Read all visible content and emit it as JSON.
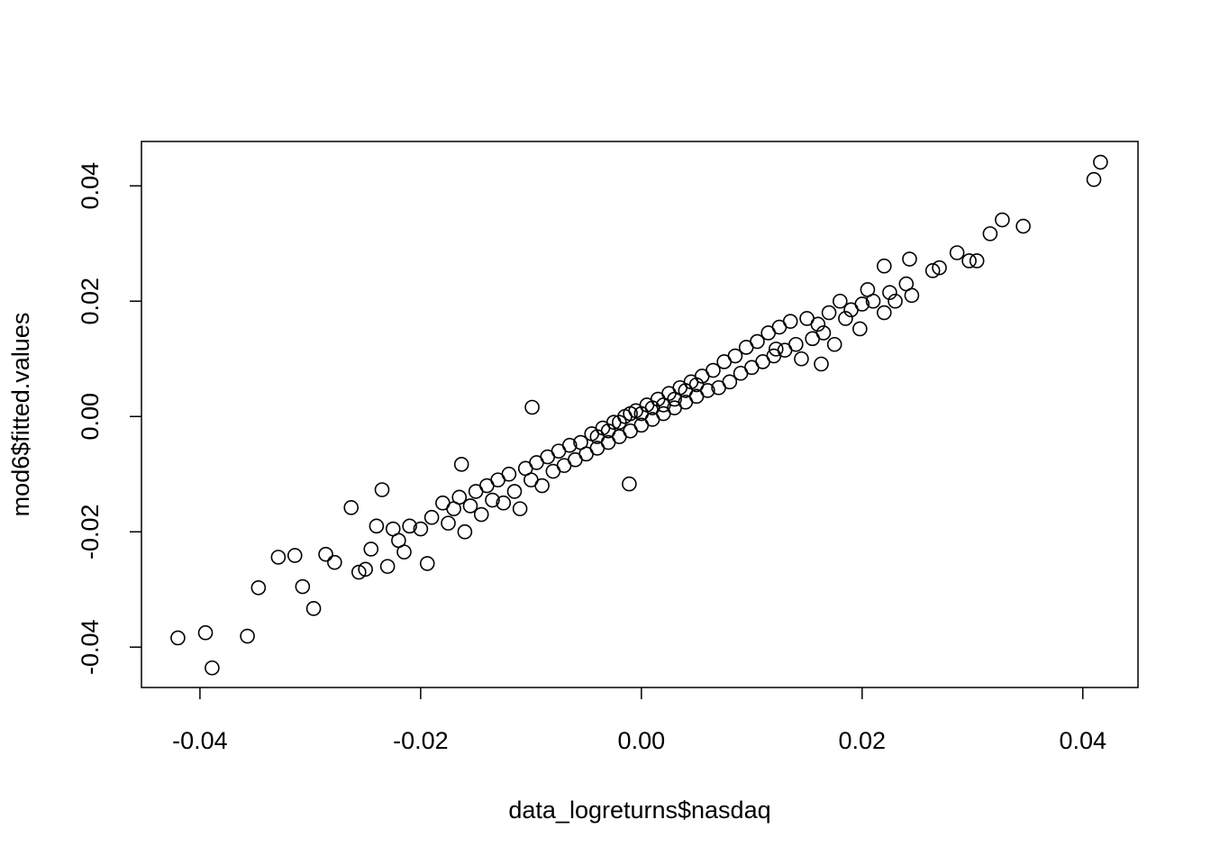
{
  "chart_data": {
    "type": "scatter",
    "xlabel": "data_logreturns$nasdaq",
    "ylabel": "mod6$fitted.values",
    "xlim": [
      -0.0453,
      0.045
    ],
    "ylim": [
      -0.047,
      0.0477
    ],
    "xticks": [
      -0.04,
      -0.02,
      {
        "value": 0,
        "label": "0.00"
      },
      0.02,
      0.04
    ],
    "yticks": [
      -0.04,
      -0.02,
      {
        "value": 0,
        "label": "0.00"
      },
      0.02,
      0.04
    ],
    "color": "#000000",
    "x": [
      0.0416,
      0.041,
      0.0327,
      0.0346,
      0.0316,
      0.0286,
      0.0297,
      0.0304,
      0.027,
      0.0264,
      0.0243,
      0.022,
      -0.042,
      -0.0395,
      -0.0389,
      -0.0357,
      -0.0347,
      -0.0297,
      -0.0329,
      -0.0314,
      -0.0307,
      -0.0286,
      -0.0278,
      -0.0263,
      -0.0256,
      -0.0235,
      -0.0194,
      -0.0163,
      -0.0099,
      -0.0011,
      0.0122,
      0.0163,
      0.0198,
      -0.02,
      -0.019,
      -0.018,
      -0.0175,
      -0.017,
      -0.0165,
      -0.016,
      -0.0155,
      -0.015,
      -0.0145,
      -0.014,
      -0.0135,
      -0.013,
      -0.0125,
      -0.012,
      -0.0115,
      -0.011,
      -0.0105,
      -0.01,
      -0.0095,
      -0.009,
      -0.0085,
      -0.008,
      -0.0075,
      -0.007,
      -0.0065,
      -0.006,
      -0.0055,
      -0.005,
      -0.0045,
      -0.004,
      -0.0035,
      -0.003,
      -0.0025,
      -0.002,
      -0.0015,
      -0.001,
      -0.0005,
      0,
      0.0005,
      0.001,
      0.0015,
      0.002,
      0.0025,
      0.003,
      0.0035,
      0.004,
      0.0045,
      0.005,
      0.0055,
      0.006,
      0.0065,
      0.007,
      0.0075,
      0.008,
      0.0085,
      0.009,
      0.0095,
      0.01,
      0.0105,
      0.011,
      0.0115,
      0.012,
      0.0125,
      0.013,
      0.0135,
      0.014,
      0.0145,
      0.015,
      0.0155,
      0.016,
      0.0165,
      0.017,
      0.0175,
      0.018,
      0.0185,
      0.019,
      0.02,
      0.0205,
      0.021,
      0.022,
      0.0225,
      0.023,
      0.024,
      0.0245,
      -0.021,
      -0.022,
      -0.0225,
      -0.023,
      -0.024,
      -0.0245,
      -0.025,
      -0.0215,
      0.001,
      -0.002,
      0.003,
      -0.001,
      0.002,
      0,
      -0.003,
      0.004,
      0.005,
      -0.004
    ],
    "y": [
      0.0441,
      0.0411,
      0.0341,
      0.033,
      0.0317,
      0.0284,
      0.027,
      0.027,
      0.0258,
      0.0253,
      0.0273,
      0.0261,
      -0.0384,
      -0.0375,
      -0.0436,
      -0.0381,
      -0.0297,
      -0.0333,
      -0.0244,
      -0.0241,
      -0.0295,
      -0.0239,
      -0.0253,
      -0.0158,
      -0.027,
      -0.0127,
      -0.0255,
      -0.0083,
      0.0016,
      -0.0117,
      0.0117,
      0.0091,
      0.0152,
      -0.0195,
      -0.0175,
      -0.015,
      -0.0185,
      -0.016,
      -0.014,
      -0.02,
      -0.0155,
      -0.013,
      -0.017,
      -0.012,
      -0.0145,
      -0.011,
      -0.015,
      -0.01,
      -0.013,
      -0.016,
      -0.009,
      -0.011,
      -0.008,
      -0.012,
      -0.007,
      -0.0095,
      -0.006,
      -0.0085,
      -0.005,
      -0.0075,
      -0.0045,
      -0.0065,
      -0.003,
      -0.0055,
      -0.002,
      -0.0045,
      -0.001,
      -0.0035,
      0,
      -0.0025,
      0.001,
      -0.0015,
      0.002,
      -0.0005,
      0.003,
      0.0005,
      0.004,
      0.0015,
      0.005,
      0.0025,
      0.006,
      0.0035,
      0.007,
      0.0045,
      0.008,
      0.005,
      0.0095,
      0.006,
      0.0105,
      0.0075,
      0.012,
      0.0085,
      0.013,
      0.0095,
      0.0145,
      0.0105,
      0.0155,
      0.0115,
      0.0165,
      0.0125,
      0.01,
      0.017,
      0.0135,
      0.016,
      0.0145,
      0.018,
      0.0125,
      0.02,
      0.017,
      0.0185,
      0.0195,
      0.022,
      0.02,
      0.018,
      0.0215,
      0.02,
      0.023,
      0.021,
      -0.019,
      -0.0215,
      -0.0195,
      -0.026,
      -0.019,
      -0.023,
      -0.0265,
      -0.0235,
      0.0015,
      -0.001,
      0.003,
      0.0005,
      0.002,
      0.0005,
      -0.0025,
      0.0045,
      0.0055,
      -0.0035
    ]
  }
}
